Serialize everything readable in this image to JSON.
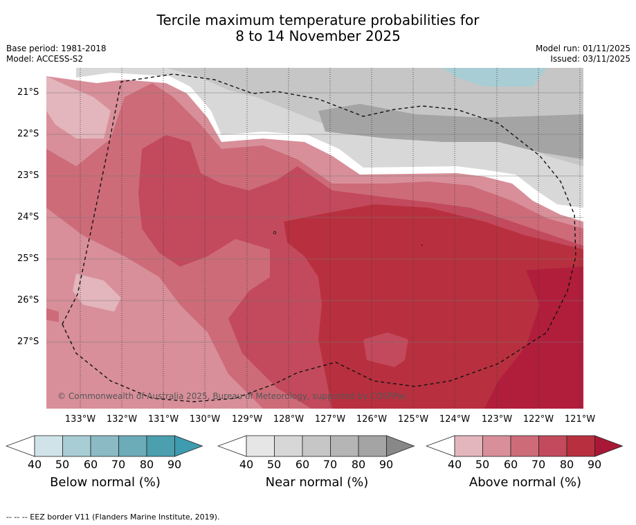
{
  "title_line1": "Tercile maximum temperature probabilities for",
  "title_line2": "8 to 14 November 2025",
  "base_period": "Base period: 1981-2018",
  "model": "Model: ACCESS-S2",
  "model_run": "Model run: 01/11/2025",
  "issued": "Issued: 03/11/2025",
  "latitudes": [
    "21°S",
    "22°S",
    "23°S",
    "24°S",
    "25°S",
    "26°S",
    "27°S"
  ],
  "longitudes": [
    "133°W",
    "132°W",
    "131°W",
    "130°W",
    "129°W",
    "128°W",
    "127°W",
    "126°W",
    "125°W",
    "124°W",
    "123°W",
    "122°W",
    "121°W"
  ],
  "copyright": "© Commonwealth of Australia 2025, Bureau of Meteorology, supported by COSPPac",
  "colorbars": [
    {
      "label": "Below normal (%)",
      "ticks": [
        "40",
        "50",
        "60",
        "70",
        "80",
        "90"
      ],
      "colors": [
        "#cfe3e8",
        "#a9cdd4",
        "#8bbac4",
        "#6cabb8",
        "#4b9fae",
        "#3f9bb0"
      ]
    },
    {
      "label": "Near normal (%)",
      "ticks": [
        "40",
        "50",
        "60",
        "70",
        "80",
        "90"
      ],
      "colors": [
        "#e6e6e6",
        "#d7d7d7",
        "#c6c6c6",
        "#b5b5b5",
        "#a4a4a4",
        "#888888"
      ]
    },
    {
      "label": "Above normal (%)",
      "ticks": [
        "40",
        "50",
        "60",
        "70",
        "80",
        "90"
      ],
      "colors": [
        "#e3b5bc",
        "#d88f99",
        "#cd6b79",
        "#c24a5c",
        "#b8303f",
        "#a81836"
      ]
    }
  ],
  "footer": "-- -- -- EEZ border V11 (Flanders Marine Institute, 2019)."
}
